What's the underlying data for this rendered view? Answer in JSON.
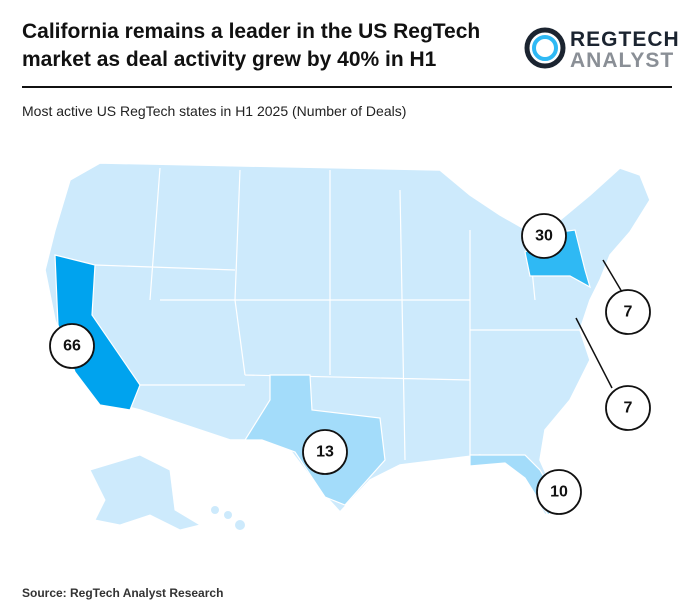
{
  "title": "California remains a leader in the US RegTech market as deal activity grew by 40% in H1",
  "logo": {
    "top": "REGTECH",
    "bottom": "ANALYST"
  },
  "subtitle": "Most active US RegTech states in H1 2025 (Number of Deals)",
  "callouts": [
    {
      "value": 66,
      "color": "#00a3ee"
    },
    {
      "value": 30,
      "color": "#2fb9f4"
    },
    {
      "value": 13,
      "color": "#a3dcfa"
    },
    {
      "value": 10,
      "color": "#a3dcfa"
    },
    {
      "value": 7
    },
    {
      "value": 7
    }
  ],
  "source": "Source: RegTech Analyst Research"
}
